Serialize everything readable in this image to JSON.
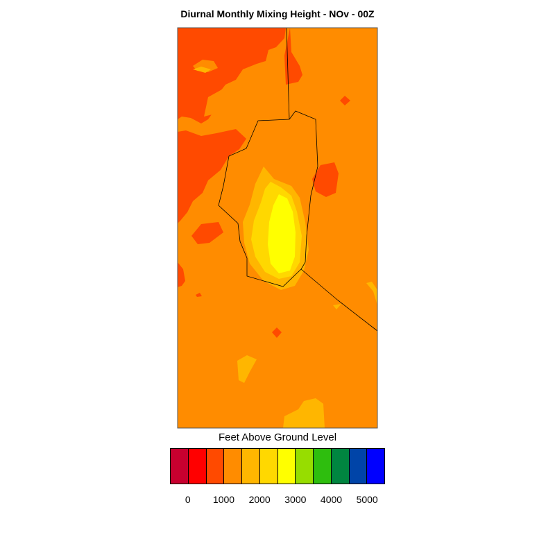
{
  "title": "Diurnal Monthly Mixing Height - NOv - 00Z",
  "legend": {
    "title": "Feet Above Ground Level",
    "colors": [
      "#c8002f",
      "#ff0000",
      "#ff4a00",
      "#ff8c00",
      "#ffb600",
      "#ffd800",
      "#ffff00",
      "#97dd00",
      "#2ebe0e",
      "#008540",
      "#0044a8",
      "#0000ff"
    ],
    "tick_labels": [
      "0",
      "1000",
      "2000",
      "3000",
      "4000",
      "5000"
    ]
  },
  "map": {
    "background_color": "#ff8c00",
    "regions": [
      {
        "name": "low-mixing-west-region",
        "color": "#ff4a00"
      },
      {
        "name": "low-mixing-east-patch",
        "color": "#ff4a00"
      },
      {
        "name": "moderate-core-region",
        "color": "#ffb600"
      },
      {
        "name": "high-core-region",
        "color": "#ffd800"
      },
      {
        "name": "peak-core-region",
        "color": "#ffff00"
      }
    ]
  }
}
